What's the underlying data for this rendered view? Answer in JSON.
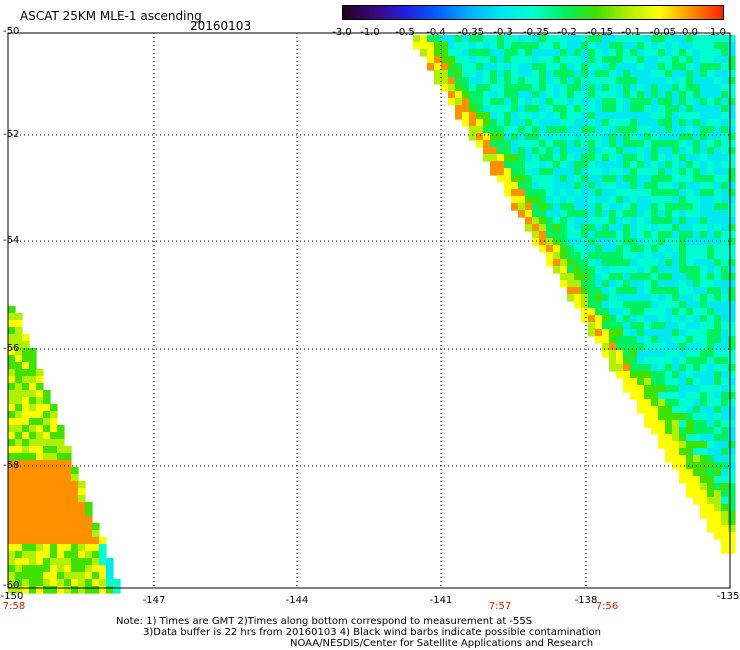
{
  "header": {
    "title": "ASCAT 25KM MLE-1 ascending",
    "date": "20160103"
  },
  "colorbar": {
    "labels": [
      "-3.0",
      "-1.0",
      "-0.5",
      "-0.4",
      "-0.35",
      "-0.3",
      "-0.25",
      "-0.2",
      "-0.15",
      "-0.1",
      "-0.05",
      "0.0",
      "1.0"
    ],
    "colors": [
      "#200020",
      "#3a0a78",
      "#2020e0",
      "#0060ff",
      "#00b0ff",
      "#00e8f0",
      "#00ffd0",
      "#00f060",
      "#40e000",
      "#b0f000",
      "#ffff00",
      "#ff9000",
      "#ff2000"
    ]
  },
  "map": {
    "lat_labels": [
      "-50",
      "-52",
      "-54",
      "-56",
      "-58",
      "-60"
    ],
    "lon_labels": [
      "-150",
      "-147",
      "-144",
      "-141",
      "-138",
      "-135"
    ],
    "time_labels": [
      "7:58",
      "7:57",
      "7:56"
    ]
  },
  "notes": {
    "line1": "Note: 1) Times are GMT 2)Times along bottom correspond to measurement at -55S",
    "line2": "3)Data buffer is 22 hrs from 20160103 4) Black wind barbs indicate possible contamination",
    "line3": "NOAA/NESDIS/Center for Satellite Applications and Research"
  }
}
